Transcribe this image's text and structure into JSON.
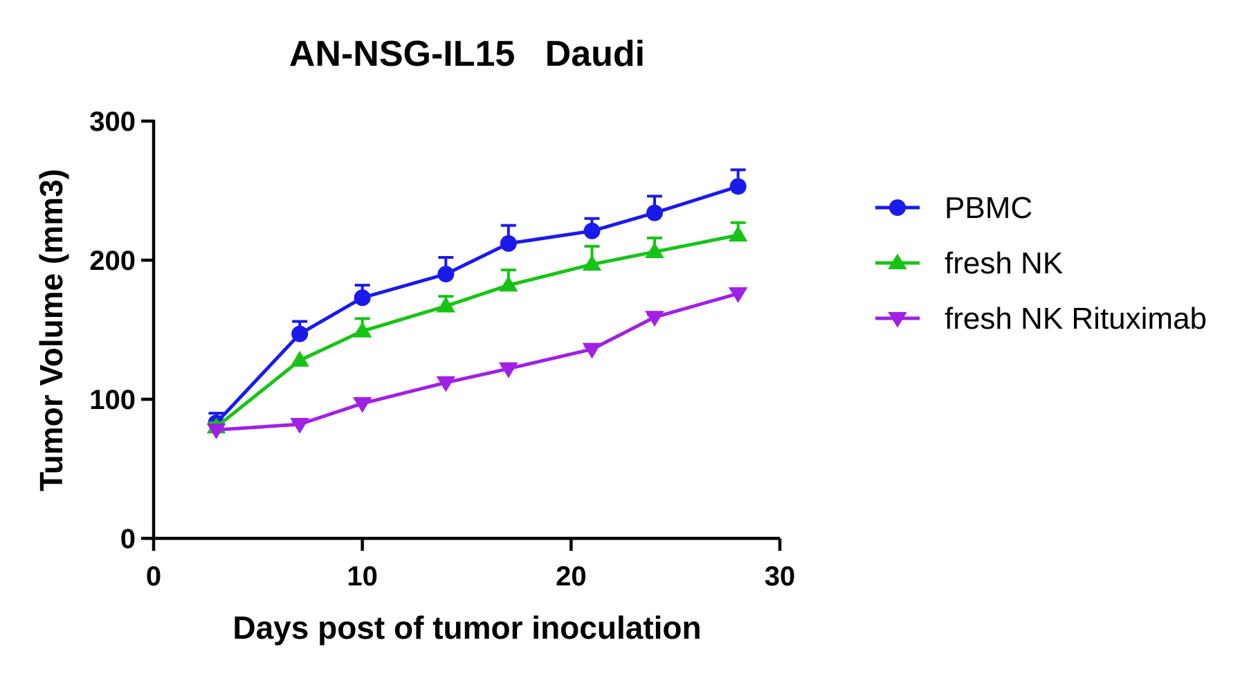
{
  "chart_data": {
    "type": "line",
    "title": "AN-NSG-IL15   Daudi",
    "xlabel": "Days post of tumor inoculation",
    "ylabel": "Tumor Volume (mm3)",
    "xlim": [
      0,
      30
    ],
    "ylim": [
      0,
      300
    ],
    "xticks": [
      0,
      10,
      20,
      30
    ],
    "yticks": [
      0,
      100,
      200,
      300
    ],
    "grid": false,
    "legend_position": "right",
    "x": [
      3,
      7,
      10,
      14,
      17,
      21,
      24,
      28
    ],
    "series": [
      {
        "name": "PBMC",
        "color": "#1a1aeb",
        "marker": "circle",
        "values": [
          83,
          147,
          173,
          190,
          212,
          221,
          234,
          253
        ],
        "error_up": [
          7,
          9,
          9,
          12,
          13,
          9,
          12,
          12
        ]
      },
      {
        "name": "fresh NK",
        "color": "#16c416",
        "marker": "triangle-up",
        "values": [
          80,
          128,
          149,
          167,
          182,
          197,
          206,
          218
        ],
        "error_up": [
          3,
          0,
          9,
          7,
          11,
          13,
          10,
          9
        ]
      },
      {
        "name": "fresh NK Rituximab",
        "color": "#a020e6",
        "marker": "triangle-down",
        "values": [
          78,
          82,
          97,
          112,
          122,
          136,
          159,
          176
        ],
        "error_up": [
          0,
          2,
          3,
          3,
          2,
          2,
          2,
          3
        ]
      }
    ]
  }
}
